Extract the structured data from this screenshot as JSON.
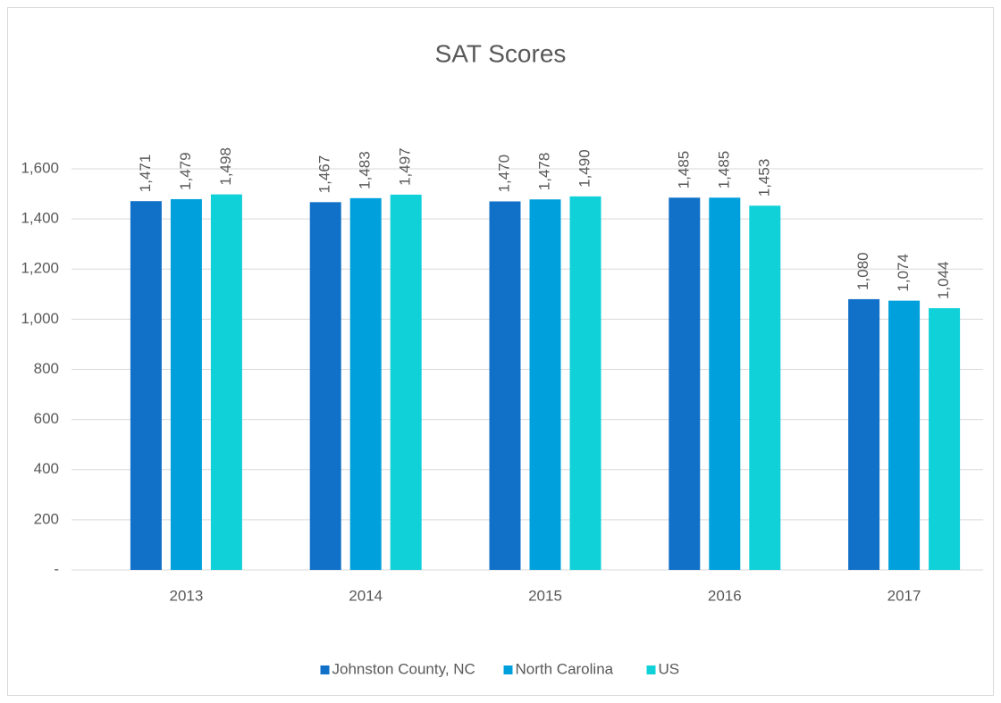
{
  "chart_data": {
    "type": "bar",
    "title": "SAT Scores",
    "categories": [
      "2013",
      "2014",
      "2015",
      "2016",
      "2017"
    ],
    "series": [
      {
        "name": "Johnston County, NC",
        "color": "#1170c8",
        "values": [
          1471,
          1467,
          1470,
          1485,
          1080
        ],
        "value_labels": [
          "1,471",
          "1,467",
          "1,470",
          "1,485",
          "1,080"
        ]
      },
      {
        "name": "North Carolina",
        "color": "#00a0dc",
        "values": [
          1479,
          1483,
          1478,
          1485,
          1074
        ],
        "value_labels": [
          "1,479",
          "1,483",
          "1,478",
          "1,485",
          "1,074"
        ]
      },
      {
        "name": "US",
        "color": "#10d0d8",
        "values": [
          1498,
          1497,
          1490,
          1453,
          1044
        ],
        "value_labels": [
          "1,498",
          "1,497",
          "1,490",
          "1,453",
          "1,044"
        ]
      }
    ],
    "ylim": [
      0,
      1600
    ],
    "yticks": [
      {
        "value": 0,
        "label": "-"
      },
      200,
      400,
      600,
      800,
      {
        "value": 1000,
        "label": "1,000"
      },
      {
        "value": 1200,
        "label": "1,200"
      },
      {
        "value": 1400,
        "label": "1,400"
      },
      {
        "value": 1600,
        "label": "1,600"
      }
    ],
    "grid": true,
    "legend": "bottom"
  }
}
